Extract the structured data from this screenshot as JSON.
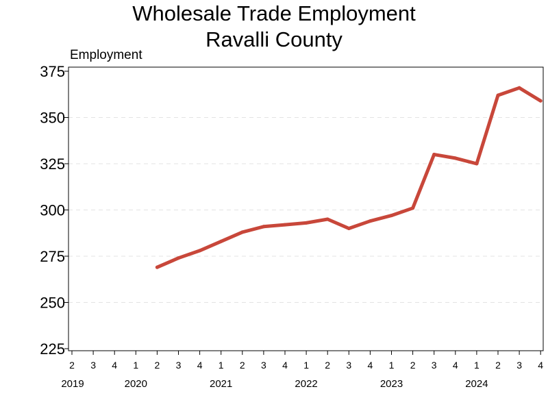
{
  "chart_data": {
    "type": "line",
    "title": [
      "Wholesale Trade Employment",
      "Ravalli County"
    ],
    "ylabel": "Employment",
    "xlabel": "",
    "ylim": [
      225,
      375
    ],
    "yticks": [
      225,
      250,
      275,
      300,
      325,
      350,
      375
    ],
    "grid": "horizontal dashed",
    "legend": "none",
    "x_ticks": [
      {
        "quarter": "2",
        "year": "2019"
      },
      {
        "quarter": "3",
        "year": ""
      },
      {
        "quarter": "4",
        "year": ""
      },
      {
        "quarter": "1",
        "year": "2020"
      },
      {
        "quarter": "2",
        "year": ""
      },
      {
        "quarter": "3",
        "year": ""
      },
      {
        "quarter": "4",
        "year": ""
      },
      {
        "quarter": "1",
        "year": "2021"
      },
      {
        "quarter": "2",
        "year": ""
      },
      {
        "quarter": "3",
        "year": ""
      },
      {
        "quarter": "4",
        "year": ""
      },
      {
        "quarter": "1",
        "year": "2022"
      },
      {
        "quarter": "2",
        "year": ""
      },
      {
        "quarter": "3",
        "year": ""
      },
      {
        "quarter": "4",
        "year": ""
      },
      {
        "quarter": "1",
        "year": "2023"
      },
      {
        "quarter": "2",
        "year": ""
      },
      {
        "quarter": "3",
        "year": ""
      },
      {
        "quarter": "4",
        "year": ""
      },
      {
        "quarter": "1",
        "year": "2024"
      },
      {
        "quarter": "2",
        "year": ""
      },
      {
        "quarter": "3",
        "year": ""
      },
      {
        "quarter": "4",
        "year": ""
      }
    ],
    "series": [
      {
        "color": "#c8473a",
        "points": [
          {
            "x": "2020 Q2",
            "y": 269
          },
          {
            "x": "2020 Q3",
            "y": 274
          },
          {
            "x": "2020 Q4",
            "y": 278
          },
          {
            "x": "2021 Q1",
            "y": 283
          },
          {
            "x": "2021 Q2",
            "y": 288
          },
          {
            "x": "2021 Q3",
            "y": 291
          },
          {
            "x": "2021 Q4",
            "y": 292
          },
          {
            "x": "2022 Q1",
            "y": 293
          },
          {
            "x": "2022 Q2",
            "y": 295
          },
          {
            "x": "2022 Q3",
            "y": 290
          },
          {
            "x": "2022 Q4",
            "y": 294
          },
          {
            "x": "2023 Q1",
            "y": 297
          },
          {
            "x": "2023 Q2",
            "y": 301
          },
          {
            "x": "2023 Q3",
            "y": 330
          },
          {
            "x": "2023 Q4",
            "y": 328
          },
          {
            "x": "2024 Q1",
            "y": 325
          },
          {
            "x": "2024 Q2",
            "y": 362
          },
          {
            "x": "2024 Q3",
            "y": 366
          },
          {
            "x": "2024 Q4",
            "y": 359
          }
        ]
      }
    ]
  }
}
